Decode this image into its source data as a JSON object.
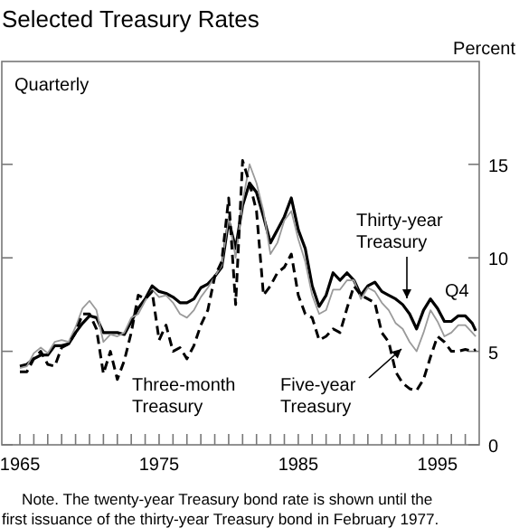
{
  "chart_data": {
    "type": "line",
    "title": "Selected Treasury Rates",
    "ylabel": "Percent",
    "annotations": [
      "Quarterly",
      "Q4",
      "Note. The twenty-year Treasury bond rate is shown until the first issuance of the thirty-year Treasury bond in February 1977."
    ],
    "xlim": [
      1963.7,
      1998
    ],
    "ylim": [
      0,
      20.5
    ],
    "xticks": [
      {
        "value": 1965,
        "label": "1965"
      },
      {
        "value": 1966,
        "label": null
      },
      {
        "value": 1967,
        "label": null
      },
      {
        "value": 1968,
        "label": null
      },
      {
        "value": 1969,
        "label": null
      },
      {
        "value": 1970,
        "label": null
      },
      {
        "value": 1971,
        "label": null
      },
      {
        "value": 1972,
        "label": null
      },
      {
        "value": 1973,
        "label": null
      },
      {
        "value": 1974,
        "label": null
      },
      {
        "value": 1975,
        "label": "1975"
      },
      {
        "value": 1976,
        "label": null
      },
      {
        "value": 1977,
        "label": null
      },
      {
        "value": 1978,
        "label": null
      },
      {
        "value": 1979,
        "label": null
      },
      {
        "value": 1980,
        "label": null
      },
      {
        "value": 1981,
        "label": null
      },
      {
        "value": 1982,
        "label": null
      },
      {
        "value": 1983,
        "label": null
      },
      {
        "value": 1984,
        "label": null
      },
      {
        "value": 1985,
        "label": "1985"
      },
      {
        "value": 1986,
        "label": null
      },
      {
        "value": 1987,
        "label": null
      },
      {
        "value": 1988,
        "label": null
      },
      {
        "value": 1989,
        "label": null
      },
      {
        "value": 1990,
        "label": null
      },
      {
        "value": 1991,
        "label": null
      },
      {
        "value": 1992,
        "label": null
      },
      {
        "value": 1993,
        "label": null
      },
      {
        "value": 1994,
        "label": null
      },
      {
        "value": 1995,
        "label": "1995"
      },
      {
        "value": 1996,
        "label": null
      },
      {
        "value": 1997,
        "label": null
      }
    ],
    "yticks": [
      0,
      5,
      10,
      15
    ],
    "grid": false,
    "series": [
      {
        "name": "Thirty-year Treasury",
        "color": "#000000",
        "line_style": "solid",
        "values": [
          4.2,
          4.3,
          4.6,
          4.8,
          4.8,
          5.3,
          5.3,
          5.4,
          6.0,
          6.5,
          6.9,
          6.8,
          6.0,
          6.0,
          6.0,
          5.9,
          6.6,
          7.3,
          7.8,
          8.5,
          8.2,
          8.1,
          7.9,
          7.6,
          7.6,
          7.8,
          8.4,
          8.6,
          9.0,
          9.5,
          12.0,
          10.5,
          12.8,
          14.0,
          13.5,
          12.2,
          10.8,
          11.5,
          12.2,
          13.2,
          11.5,
          10.5,
          8.5,
          7.4,
          8.0,
          9.2,
          8.8,
          9.2,
          8.8,
          8.0,
          8.5,
          8.7,
          8.2,
          8.0,
          7.8,
          7.5,
          7.0,
          6.2,
          7.2,
          7.8,
          7.3,
          6.6,
          6.6,
          6.9,
          6.9,
          6.5,
          6.1
        ]
      },
      {
        "name": "Five-year Treasury",
        "color": "#9a9a9a",
        "line_style": "solid",
        "values": [
          4.1,
          4.2,
          4.9,
          5.2,
          4.9,
          5.5,
          5.6,
          5.5,
          6.3,
          7.3,
          7.7,
          7.2,
          5.5,
          5.9,
          5.8,
          6.0,
          6.8,
          7.0,
          7.7,
          8.3,
          7.9,
          8.0,
          7.6,
          7.0,
          6.8,
          7.2,
          7.9,
          8.4,
          9.0,
          9.6,
          12.2,
          10.0,
          13.0,
          15.0,
          14.0,
          12.5,
          10.2,
          10.8,
          12.0,
          12.5,
          11.0,
          9.8,
          8.0,
          7.0,
          7.2,
          8.3,
          8.3,
          8.8,
          8.8,
          7.8,
          8.4,
          8.2,
          7.6,
          7.2,
          6.5,
          6.2,
          5.5,
          5.0,
          6.0,
          7.2,
          6.6,
          5.8,
          6.0,
          6.4,
          6.4,
          6.0,
          5.8
        ]
      },
      {
        "name": "Three-month Treasury",
        "color": "#000000",
        "line_style": "dashed",
        "values": [
          3.9,
          3.9,
          4.6,
          5.0,
          4.3,
          4.2,
          5.2,
          5.4,
          6.0,
          7.0,
          7.0,
          6.2,
          3.8,
          5.0,
          3.5,
          4.5,
          6.0,
          8.0,
          7.8,
          8.2,
          5.6,
          6.4,
          5.0,
          5.2,
          4.6,
          5.3,
          6.4,
          7.2,
          9.0,
          9.8,
          13.2,
          7.5,
          15.2,
          14.0,
          12.5,
          8.0,
          8.5,
          9.2,
          9.5,
          10.2,
          8.0,
          7.0,
          6.8,
          5.6,
          5.8,
          6.2,
          6.0,
          7.3,
          8.5,
          8.0,
          7.8,
          7.6,
          6.0,
          5.5,
          3.9,
          3.3,
          3.0,
          2.9,
          3.5,
          4.7,
          5.8,
          5.5,
          5.0,
          5.0,
          5.1,
          5.0,
          5.1
        ]
      }
    ],
    "x": [
      1965,
      1965.5,
      1966,
      1966.5,
      1967,
      1967.5,
      1968,
      1968.5,
      1969,
      1969.5,
      1970,
      1970.5,
      1971,
      1971.5,
      1972,
      1972.5,
      1973,
      1973.5,
      1974,
      1974.5,
      1975,
      1975.5,
      1976,
      1976.5,
      1977,
      1977.5,
      1978,
      1978.5,
      1979,
      1979.5,
      1980,
      1980.5,
      1981,
      1981.5,
      1982,
      1982.5,
      1983,
      1983.5,
      1984,
      1984.5,
      1985,
      1985.5,
      1986,
      1986.5,
      1987,
      1987.5,
      1988,
      1988.5,
      1989,
      1989.5,
      1990,
      1990.5,
      1991,
      1991.5,
      1992,
      1992.5,
      1993,
      1993.5,
      1994,
      1994.5,
      1995,
      1995.5,
      1996,
      1996.5,
      1997,
      1997.5,
      1997.75
    ]
  }
}
